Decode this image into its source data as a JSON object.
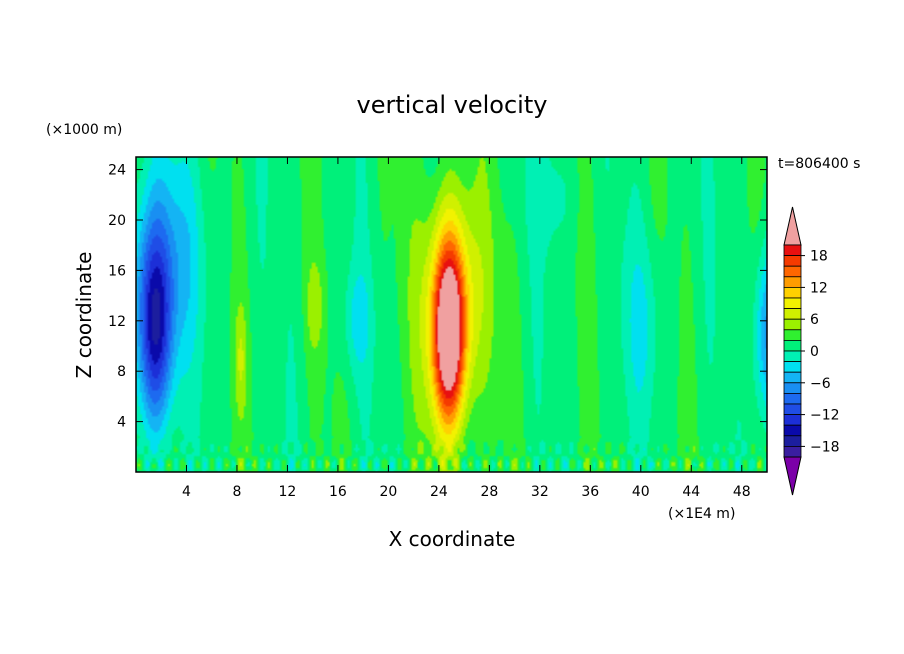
{
  "chart_data": {
    "type": "heatmap",
    "title": "vertical velocity",
    "xlabel": "X coordinate",
    "ylabel": "Z coordinate",
    "x_unit_label": "(×1E4 m)",
    "y_unit_label": "(×1000 m)",
    "time_label": "t=806400 s",
    "xlim": [
      0,
      50
    ],
    "ylim": [
      0,
      25
    ],
    "x_ticks": [
      4,
      8,
      12,
      16,
      20,
      24,
      28,
      32,
      36,
      40,
      44,
      48
    ],
    "y_ticks": [
      4,
      8,
      12,
      16,
      20,
      24
    ],
    "colorbar": {
      "labels": [
        "18",
        "12",
        "6",
        "0",
        "−6",
        "−12",
        "−18"
      ],
      "levels": [
        -20,
        -18,
        -16,
        -14,
        -12,
        -10,
        -8,
        -6,
        -4,
        -2,
        0,
        2,
        4,
        6,
        8,
        10,
        12,
        14,
        16,
        18,
        20
      ],
      "colors": [
        "#7b00a8",
        "#3a1ea0",
        "#1c1e9e",
        "#0a0aaa",
        "#1c2fd7",
        "#1f4de6",
        "#1d6af0",
        "#198ff2",
        "#14b4f4",
        "#00e0f0",
        "#00f0b4",
        "#00f07a",
        "#30f030",
        "#9bf000",
        "#d0f000",
        "#f2f200",
        "#ffd100",
        "#ff9c00",
        "#ff6600",
        "#f53a00",
        "#e81010",
        "#f0a0a0"
      ]
    },
    "features": [
      {
        "name": "updraft core",
        "x": 24.8,
        "z": 11,
        "peak": 22
      },
      {
        "name": "downdraft core left",
        "x": 1.5,
        "z": 11,
        "peak": -14
      },
      {
        "name": "downdraft right edge",
        "x": 49.8,
        "z": 11,
        "peak": -8
      }
    ]
  }
}
